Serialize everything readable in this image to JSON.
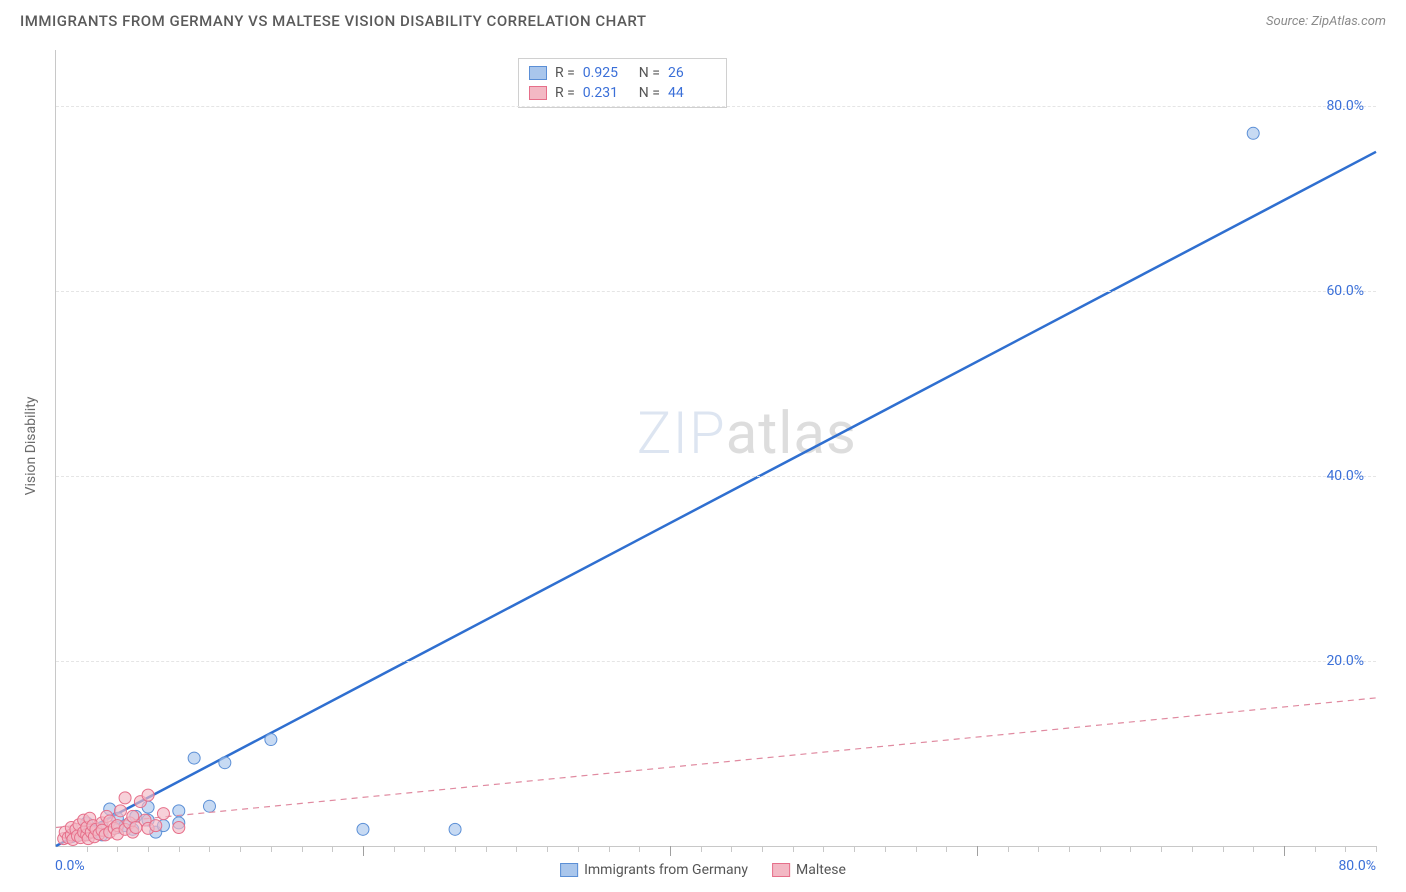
{
  "header": {
    "title": "IMMIGRANTS FROM GERMANY VS MALTESE VISION DISABILITY CORRELATION CHART",
    "source": "Source: ZipAtlas.com"
  },
  "ylabel": "Vision Disability",
  "watermark": {
    "part1": "ZIP",
    "part2": "atlas"
  },
  "chart": {
    "type": "scatter",
    "xlim": [
      0,
      86
    ],
    "ylim": [
      0,
      86
    ],
    "ytick_values": [
      20,
      40,
      60,
      80
    ],
    "ytick_labels": [
      "20.0%",
      "40.0%",
      "60.0%",
      "80.0%"
    ],
    "xtick_left": "0.0%",
    "xtick_right": "80.0%",
    "x_minor_step": 2,
    "x_major_step": 20,
    "grid_color": "#e5e5e5",
    "axis_color": "#c8c8c8",
    "background_color": "#ffffff",
    "series": [
      {
        "id": "germany",
        "name": "Immigrants from Germany",
        "color_fill": "#a9c6ec",
        "color_stroke": "#5b8fd6",
        "marker_radius": 6,
        "marker_opacity": 0.65,
        "line_color": "#2f6fd0",
        "line_width": 2.5,
        "line_dash": "none",
        "r": "0.925",
        "n": "26",
        "trend": {
          "x1": 0,
          "y1": 0,
          "x2": 86,
          "y2": 75
        },
        "points": [
          [
            1,
            1
          ],
          [
            1.5,
            1.2
          ],
          [
            2,
            1.3
          ],
          [
            2,
            2.5
          ],
          [
            2.5,
            1.5
          ],
          [
            3,
            2
          ],
          [
            3,
            1.2
          ],
          [
            3.5,
            4
          ],
          [
            4,
            2
          ],
          [
            4,
            3
          ],
          [
            4.5,
            2.2
          ],
          [
            5,
            1.8
          ],
          [
            5.2,
            3.2
          ],
          [
            6,
            2.8
          ],
          [
            6,
            4.2
          ],
          [
            6.5,
            1.5
          ],
          [
            7,
            2.2
          ],
          [
            8,
            3.8
          ],
          [
            8,
            2.5
          ],
          [
            9,
            9.5
          ],
          [
            10,
            4.3
          ],
          [
            11,
            9
          ],
          [
            14,
            11.5
          ],
          [
            20,
            1.8
          ],
          [
            26,
            1.8
          ],
          [
            78,
            77
          ]
        ]
      },
      {
        "id": "maltese",
        "name": "Maltese",
        "color_fill": "#f3b8c4",
        "color_stroke": "#e66f8a",
        "marker_radius": 6,
        "marker_opacity": 0.65,
        "line_color": "#e08aa0",
        "line_width": 1.2,
        "line_dash": "6,5",
        "r": "0.231",
        "n": "44",
        "trend": {
          "x1": 0,
          "y1": 2,
          "x2": 86,
          "y2": 16
        },
        "points": [
          [
            0.5,
            0.8
          ],
          [
            0.6,
            1.5
          ],
          [
            0.8,
            0.9
          ],
          [
            1,
            1.2
          ],
          [
            1,
            2
          ],
          [
            1.1,
            0.7
          ],
          [
            1.3,
            1.8
          ],
          [
            1.4,
            1.1
          ],
          [
            1.5,
            2.3
          ],
          [
            1.6,
            0.9
          ],
          [
            1.8,
            1.5
          ],
          [
            1.8,
            2.8
          ],
          [
            2,
            1.2
          ],
          [
            2,
            2
          ],
          [
            2.1,
            0.8
          ],
          [
            2.2,
            3
          ],
          [
            2.3,
            1.5
          ],
          [
            2.4,
            2.2
          ],
          [
            2.5,
            1
          ],
          [
            2.6,
            1.8
          ],
          [
            2.8,
            1.3
          ],
          [
            3,
            2.5
          ],
          [
            3,
            1.7
          ],
          [
            3.2,
            1.2
          ],
          [
            3.3,
            3.2
          ],
          [
            3.5,
            1.5
          ],
          [
            3.5,
            2.7
          ],
          [
            3.8,
            1.9
          ],
          [
            4,
            2.2
          ],
          [
            4,
            1.3
          ],
          [
            4.2,
            3.8
          ],
          [
            4.5,
            1.8
          ],
          [
            4.5,
            5.2
          ],
          [
            4.8,
            2.5
          ],
          [
            5,
            1.5
          ],
          [
            5,
            3.2
          ],
          [
            5.2,
            2
          ],
          [
            5.5,
            4.8
          ],
          [
            5.8,
            2.8
          ],
          [
            6,
            1.9
          ],
          [
            6,
            5.5
          ],
          [
            6.5,
            2.2
          ],
          [
            7,
            3.5
          ],
          [
            8,
            2.0
          ]
        ]
      }
    ]
  },
  "legend_top": {
    "r_label": "R =",
    "n_label": "N ="
  },
  "tick_label_color": "#3a6fd8",
  "axis_label_color": "#6a6a6a",
  "title_color": "#5a5a5a"
}
